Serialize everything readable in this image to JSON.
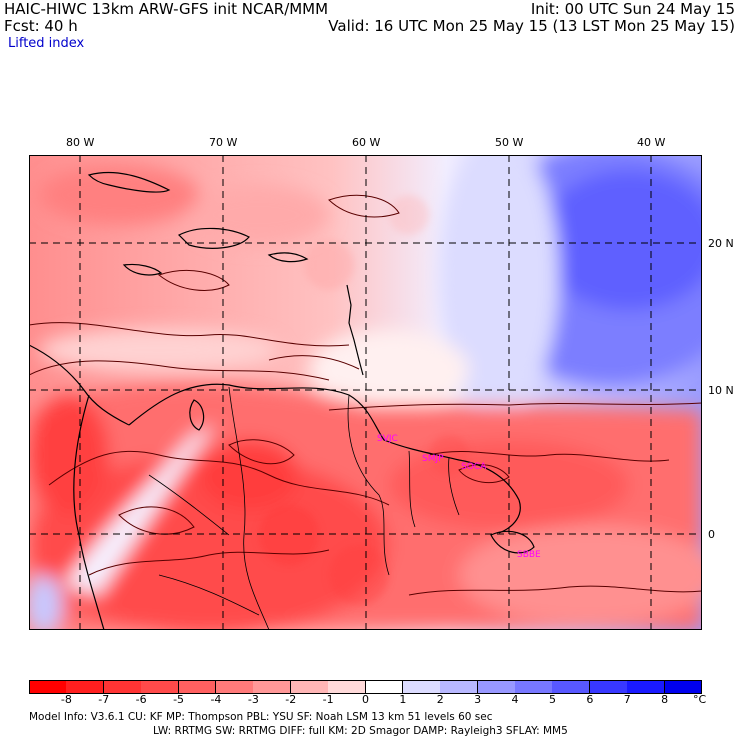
{
  "header": {
    "line1_left": "HAIC-HIWC 13km ARW-GFS init   NCAR/MMM",
    "line1_right": "Init: 00 UTC Sun 24 May 15",
    "line2_left": "Fcst:    40 h",
    "line2_right": "Valid: 16 UTC Mon 25 May 15 (13 LST Mon 25 May 15)",
    "field_name": "Lifted index"
  },
  "map": {
    "longitude_labels": [
      "80 W",
      "70 W",
      "60 W",
      "50 W",
      "40 W"
    ],
    "latitude_labels": [
      "20 N",
      "10 N",
      "0"
    ],
    "stations": [
      "SVJC",
      "SMJP",
      "SOCA",
      "SBBE"
    ],
    "colors": {
      "land_outline": "#000000",
      "contour": "#5a0000",
      "grid": "#000000"
    }
  },
  "colorbar": {
    "labels": [
      "-8",
      "-7",
      "-6",
      "-5",
      "-4",
      "-3",
      "-2",
      "-1",
      "0",
      "1",
      "2",
      "3",
      "4",
      "5",
      "6",
      "7",
      "8"
    ],
    "unit": "°C",
    "colors": [
      "#ff0000",
      "#ff1f1f",
      "#ff3434",
      "#ff4a4a",
      "#ff6060",
      "#ff7a7a",
      "#ff9898",
      "#ffb6b6",
      "#ffdada",
      "#ffffff",
      "#dcdcff",
      "#b8b8ff",
      "#9898ff",
      "#7878ff",
      "#5858ff",
      "#3838ff",
      "#1a1aff",
      "#0000ee"
    ]
  },
  "footer": {
    "line1": "Model Info: V3.6.1    CU: KF      MP: Thompson     PBL: YSU       SF: Noah LSM     13 km    51 levels   60 sec",
    "line2": "LW: RRTMG    SW: RRTMG   DIFF: full    KM: 2D Smagor  DAMP: Rayleigh3   SFLAY: MM5"
  }
}
